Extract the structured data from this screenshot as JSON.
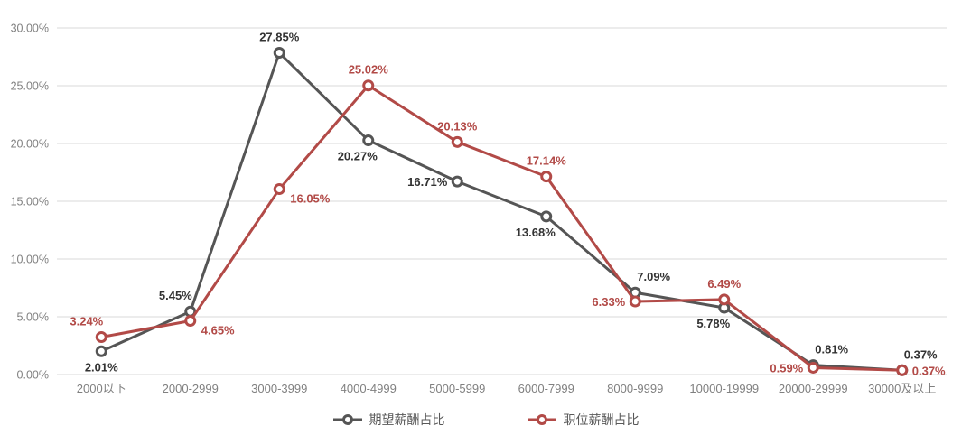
{
  "chart_data": {
    "type": "line",
    "title": "",
    "categories": [
      "2000以下",
      "2000-2999",
      "3000-3999",
      "4000-4999",
      "5000-5999",
      "6000-7999",
      "8000-9999",
      "10000-19999",
      "20000-29999",
      "30000及以上"
    ],
    "series": [
      {
        "name": "期望薪酬占比",
        "color": "#555555",
        "label_color": "#333333",
        "values": [
          2.01,
          5.45,
          27.85,
          20.27,
          16.71,
          13.68,
          7.09,
          5.78,
          0.81,
          0.37
        ],
        "data_labels": [
          "2.01%",
          "5.45%",
          "27.85%",
          "20.27%",
          "16.71%",
          "13.68%",
          "7.09%",
          "5.78%",
          "0.81%",
          "0.37%"
        ],
        "label_placements": [
          "below",
          "above-left",
          "above",
          "below-left",
          "left",
          "below-left",
          "above-right",
          "below-left",
          "above-right",
          "above-right"
        ]
      },
      {
        "name": "职位薪酬占比",
        "color": "#b24a47",
        "label_color": "#b24a47",
        "values": [
          3.24,
          4.65,
          16.05,
          25.02,
          20.13,
          17.14,
          6.33,
          6.49,
          0.59,
          0.37
        ],
        "data_labels": [
          "3.24%",
          "4.65%",
          "16.05%",
          "25.02%",
          "20.13%",
          "17.14%",
          "6.33%",
          "6.49%",
          "0.59%",
          "0.37%"
        ],
        "label_placements": [
          "above-left",
          "below-right",
          "below-right",
          "above",
          "above",
          "above",
          "left",
          "above",
          "left",
          "right"
        ]
      }
    ],
    "y_axis": {
      "min": 0,
      "max": 30,
      "step": 5,
      "ticks": [
        "0.00%",
        "5.00%",
        "10.00%",
        "15.00%",
        "20.00%",
        "25.00%",
        "30.00%"
      ]
    },
    "grid": true,
    "legend_position": "bottom",
    "colors": {
      "axis_text": "#808080",
      "gridline": "#d9d9d9",
      "marker_fill": "#ffffff",
      "background": "#ffffff"
    }
  }
}
